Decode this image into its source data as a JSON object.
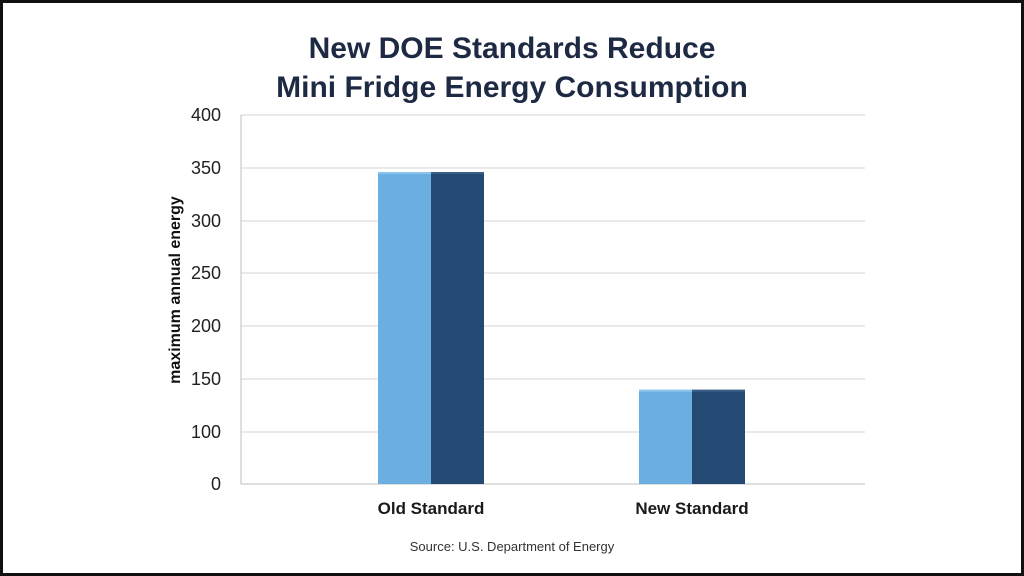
{
  "chart_data": {
    "type": "bar",
    "title": [
      "New DOE Standards Reduce",
      "Mini Fridge Energy Consumption"
    ],
    "ylabel": "maximum annual energy",
    "xlabel": "",
    "source": "Source: U.S. Department of Energy",
    "categories": [
      "Old Standard",
      "New Standard"
    ],
    "series": [
      {
        "values": [
          346,
          140
        ],
        "color": "#6aaee2"
      },
      {
        "values": [
          346,
          140
        ],
        "color": "#244a73"
      }
    ],
    "ytick_labels": [
      "0",
      "100",
      "150",
      "200",
      "250",
      "300",
      "350",
      "400"
    ],
    "ylim": [
      50,
      400
    ],
    "grid": true,
    "legend": "none"
  }
}
